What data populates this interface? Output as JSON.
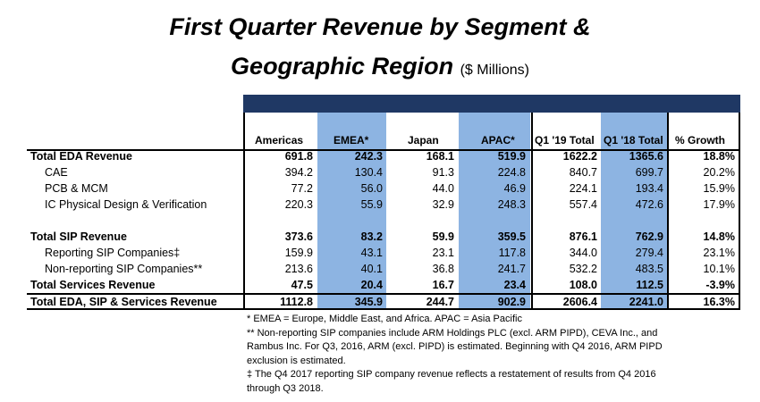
{
  "title": {
    "line1": "First Quarter Revenue by Segment &",
    "line2": "Geographic Region",
    "unit": "($ Millions)"
  },
  "columns": [
    "Americas",
    "EMEA*",
    "Japan",
    "APAC*",
    "Q1 '19 Total",
    "Q1 '18 Total",
    "% Growth"
  ],
  "rows": [
    {
      "label": "Total EDA Revenue",
      "bold": true,
      "indent": false,
      "values": [
        "691.8",
        "242.3",
        "168.1",
        "519.9",
        "1622.2",
        "1365.6",
        "18.8%"
      ]
    },
    {
      "label": "CAE",
      "bold": false,
      "indent": true,
      "values": [
        "394.2",
        "130.4",
        "91.3",
        "224.8",
        "840.7",
        "699.7",
        "20.2%"
      ]
    },
    {
      "label": "PCB & MCM",
      "bold": false,
      "indent": true,
      "values": [
        "77.2",
        "56.0",
        "44.0",
        "46.9",
        "224.1",
        "193.4",
        "15.9%"
      ]
    },
    {
      "label": "IC Physical Design & Verification",
      "bold": false,
      "indent": true,
      "values": [
        "220.3",
        "55.9",
        "32.9",
        "248.3",
        "557.4",
        "472.6",
        "17.9%"
      ]
    },
    {
      "label": "Total SIP Revenue",
      "bold": true,
      "indent": false,
      "values": [
        "373.6",
        "83.2",
        "59.9",
        "359.5",
        "876.1",
        "762.9",
        "14.8%"
      ]
    },
    {
      "label": "Reporting SIP Companies‡",
      "bold": false,
      "indent": true,
      "values": [
        "159.9",
        "43.1",
        "23.1",
        "117.8",
        "344.0",
        "279.4",
        "23.1%"
      ]
    },
    {
      "label": "Non-reporting SIP Companies**",
      "bold": false,
      "indent": true,
      "values": [
        "213.6",
        "40.1",
        "36.8",
        "241.7",
        "532.2",
        "483.5",
        "10.1%"
      ]
    },
    {
      "label": "Total Services Revenue",
      "bold": true,
      "indent": false,
      "values": [
        "47.5",
        "20.4",
        "16.7",
        "23.4",
        "108.0",
        "112.5",
        "-3.9%"
      ]
    },
    {
      "label": "Total EDA, SIP & Services Revenue",
      "bold": true,
      "indent": false,
      "values": [
        "1112.8",
        "345.9",
        "244.7",
        "902.9",
        "2606.4",
        "2241.0",
        "16.3%"
      ]
    }
  ],
  "footnotes": [
    "* EMEA = Europe, Middle East, and Africa. APAC = Asia Pacific",
    "** Non-reporting SIP companies include ARM Holdings PLC (excl. ARM PIPD), CEVA Inc., and",
    "Rambus Inc. For Q3, 2016, ARM (excl. PIPD) is estimated. Beginning with Q4 2016, ARM PIPD",
    "exclusion is estimated.",
    "‡ The Q4 2017 reporting SIP company revenue reflects a restatement of results from Q4 2016",
    "through Q3 2018."
  ],
  "colors": {
    "header_bar": "#1f3864",
    "highlight_column": "#8db4e2",
    "text": "#000000"
  }
}
